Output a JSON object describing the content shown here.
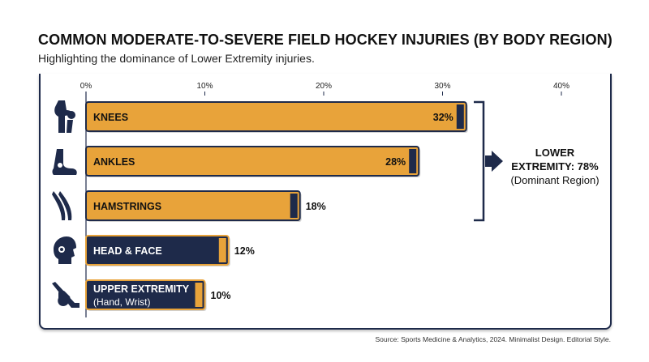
{
  "title": "COMMON MODERATE-TO-SEVERE FIELD HOCKEY INJURIES (BY BODY REGION)",
  "subtitle": "Highlighting the dominance of Lower Extremity injuries.",
  "source": "Source: Sports Medicine & Analytics, 2024. Minimalist Design. Editorial Style.",
  "colors": {
    "orange": "#e8a33a",
    "navy": "#1e2a4a",
    "white": "#ffffff"
  },
  "callout": {
    "line1": "LOWER",
    "line2": "EXTREMITY: 78%",
    "line3": "(Dominant Region)"
  },
  "chart_data": {
    "type": "bar",
    "orientation": "horizontal",
    "xlim": [
      0,
      40
    ],
    "ticks": [
      "0%",
      "10%",
      "20%",
      "30%",
      "40%"
    ],
    "tick_values": [
      0,
      10,
      20,
      30,
      40
    ],
    "categories": [
      "KNEES",
      "ANKLES",
      "HAMSTRINGS",
      "HEAD & FACE",
      "UPPER EXTREMITY"
    ],
    "sublabels": [
      "",
      "",
      "",
      "",
      "(Hand, Wrist)"
    ],
    "values": [
      32,
      28,
      18,
      12,
      10
    ],
    "value_labels": [
      "32%",
      "28%",
      "18%",
      "12%",
      "10%"
    ],
    "fills": [
      "orange",
      "orange",
      "orange",
      "navy",
      "navy"
    ],
    "icons": [
      "knee-icon",
      "ankle-icon",
      "hamstring-icon",
      "helmet-icon",
      "hockey-stick-hand-icon"
    ],
    "grouping": {
      "label": "LOWER EXTREMITY: 78%",
      "members": [
        "KNEES",
        "ANKLES",
        "HAMSTRINGS"
      ]
    }
  }
}
